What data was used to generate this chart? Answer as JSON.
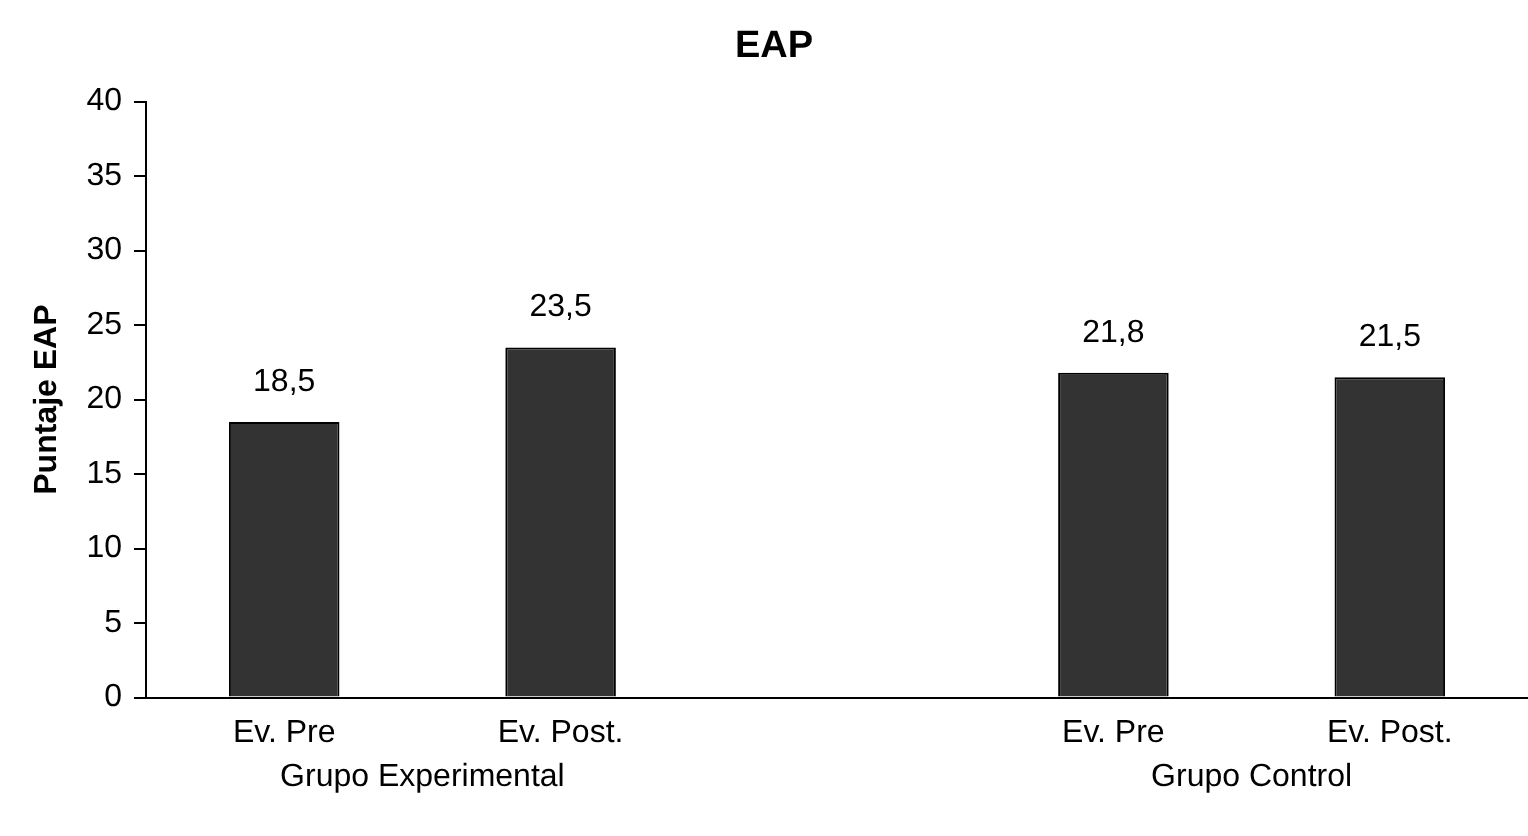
{
  "chart_data": {
    "type": "bar",
    "title": "EAP",
    "ylabel": "Puntaje EAP",
    "categories": [
      "Ev. Pre",
      "Ev. Post.",
      null,
      "Ev. Pre",
      "Ev. Post."
    ],
    "values": [
      18.5,
      23.5,
      null,
      21.8,
      21.5
    ],
    "color": "#333333",
    "ylim": [
      0,
      40
    ],
    "yticks": [
      0,
      5,
      10,
      15,
      20,
      25,
      30,
      35,
      40
    ],
    "value_labels": [
      "18,5",
      "23,5",
      null,
      "21,8",
      "21,5"
    ],
    "grid": false,
    "legend": false,
    "annotations": [
      "Grupo Experimental",
      "Grupo Control"
    ]
  }
}
